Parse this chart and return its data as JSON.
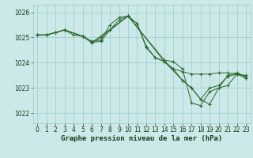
{
  "background_color": "#cce8e8",
  "grid_color": "#99cccc",
  "line_color": "#2d6a2d",
  "marker_color": "#2d6a2d",
  "xlabel": "Graphe pression niveau de la mer (hPa)",
  "xlabel_fontsize": 6.5,
  "tick_fontsize": 5.5,
  "xlim": [
    -0.5,
    23.5
  ],
  "ylim": [
    1021.6,
    1026.3
  ],
  "yticks": [
    1022,
    1023,
    1024,
    1025,
    1026
  ],
  "xticks": [
    0,
    1,
    2,
    3,
    4,
    5,
    6,
    7,
    8,
    9,
    10,
    11,
    12,
    13,
    14,
    15,
    16,
    17,
    18,
    19,
    20,
    21,
    22,
    23
  ],
  "series": [
    {
      "x": [
        0,
        1,
        2,
        3,
        4,
        5,
        6,
        7,
        8,
        9,
        10,
        11,
        12,
        13,
        14,
        15,
        16,
        17,
        18,
        19,
        20,
        21,
        22,
        23
      ],
      "y": [
        1025.1,
        1025.1,
        1025.2,
        1025.3,
        1025.1,
        1025.05,
        1024.85,
        1024.9,
        1025.5,
        1025.8,
        1025.85,
        1025.55,
        1024.65,
        1024.2,
        1024.05,
        1023.75,
        1023.65,
        1023.55,
        1023.55,
        1023.55,
        1023.6,
        1023.6,
        1023.55,
        1023.5
      ]
    },
    {
      "x": [
        0,
        1,
        2,
        3,
        5,
        6,
        7,
        10,
        14,
        15,
        16,
        17,
        18,
        19,
        20,
        21,
        22,
        23
      ],
      "y": [
        1025.1,
        1025.1,
        1025.2,
        1025.3,
        1025.05,
        1024.8,
        1025.0,
        1025.85,
        1024.1,
        1024.05,
        1023.75,
        1022.4,
        1022.3,
        1022.85,
        1023.0,
        1023.5,
        1023.6,
        1023.45
      ]
    },
    {
      "x": [
        0,
        1,
        2,
        3,
        5,
        6,
        7,
        8,
        9,
        10,
        11,
        12,
        13,
        14,
        15,
        16,
        17,
        18,
        19,
        20,
        21,
        22,
        23
      ],
      "y": [
        1025.1,
        1025.1,
        1025.2,
        1025.3,
        1025.05,
        1024.8,
        1024.85,
        1025.3,
        1025.7,
        1025.85,
        1025.55,
        1024.6,
        1024.2,
        1024.05,
        1023.75,
        1023.3,
        1023.0,
        1022.55,
        1023.0,
        1023.1,
        1023.45,
        1023.55,
        1023.4
      ]
    },
    {
      "x": [
        0,
        1,
        3,
        5,
        6,
        10,
        14,
        16,
        17,
        18,
        19,
        20,
        21,
        22,
        23
      ],
      "y": [
        1025.1,
        1025.1,
        1025.3,
        1025.05,
        1024.8,
        1025.85,
        1024.05,
        1023.3,
        1023.0,
        1022.55,
        1022.35,
        1023.0,
        1023.1,
        1023.55,
        1023.4
      ]
    }
  ]
}
